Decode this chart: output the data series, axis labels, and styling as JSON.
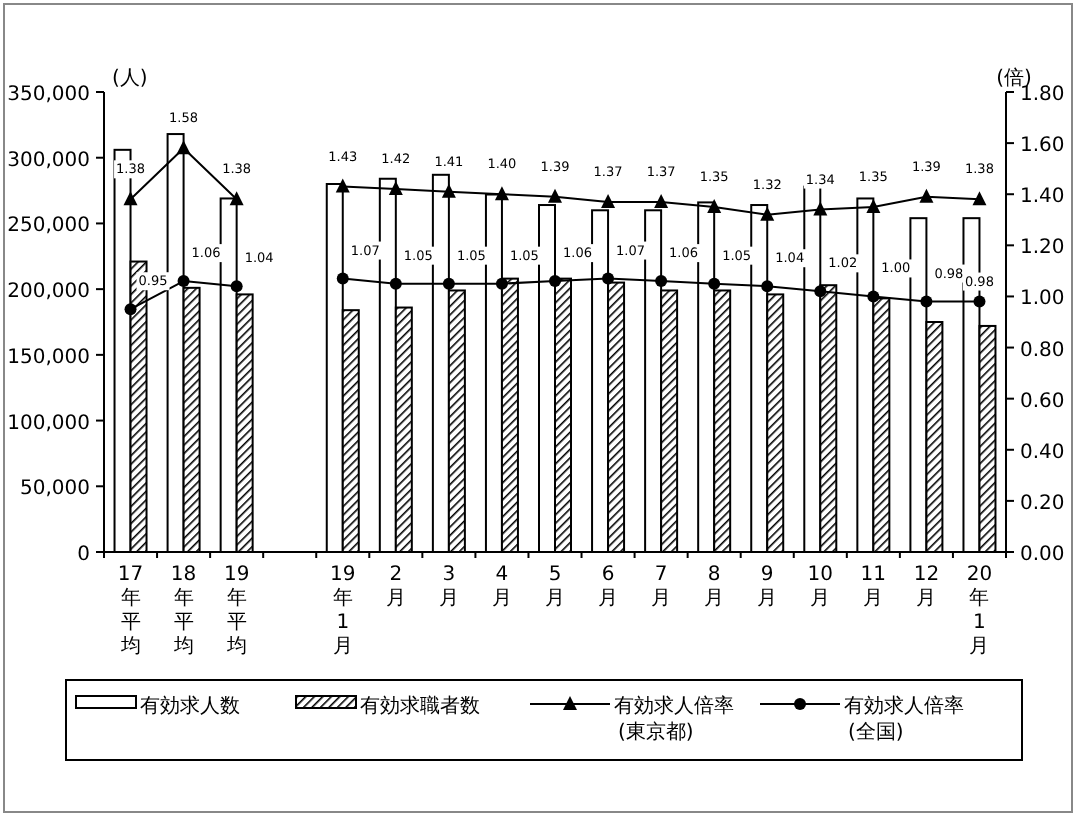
{
  "chart_data": {
    "type": "bar",
    "categories": [
      "17年平均",
      "18年平均",
      "19年平均",
      null,
      "19年1月",
      "2月",
      "3月",
      "4月",
      "5月",
      "6月",
      "7月",
      "8月",
      "9月",
      "10月",
      "11月",
      "12月",
      "20年1月"
    ],
    "ylabel": "(人)",
    "y2label": "(倍)",
    "ylim": [
      0,
      350000
    ],
    "yticks": [
      {
        "value": 0,
        "label": "0"
      },
      {
        "value": 50000,
        "label": "50,000"
      },
      {
        "value": 100000,
        "label": "100,000"
      },
      {
        "value": 150000,
        "label": "150,000"
      },
      {
        "value": 200000,
        "label": "200,000"
      },
      {
        "value": 250000,
        "label": "250,000"
      },
      {
        "value": 300000,
        "label": "300,000"
      },
      {
        "value": 350000,
        "label": "350,000"
      }
    ],
    "y2lim": [
      0,
      1.8
    ],
    "y2ticks": [
      {
        "value": 0,
        "label": "0.00"
      },
      {
        "value": 0.2,
        "label": "0.20"
      },
      {
        "value": 0.4,
        "label": "0.40"
      },
      {
        "value": 0.6,
        "label": "0.60"
      },
      {
        "value": 0.8,
        "label": "0.80"
      },
      {
        "value": 1.0,
        "label": "1.00"
      },
      {
        "value": 1.2,
        "label": "1.20"
      },
      {
        "value": 1.4,
        "label": "1.40"
      },
      {
        "value": 1.6,
        "label": "1.60"
      },
      {
        "value": 1.8,
        "label": "1.80"
      }
    ],
    "grid": false,
    "legend": "bottom",
    "series": [
      {
        "name": "有効求人数",
        "color": "#ffffff",
        "values": [
          306000,
          318000,
          269000,
          null,
          280000,
          284000,
          287000,
          272000,
          264000,
          260000,
          260000,
          266000,
          264000,
          278000,
          269000,
          254000,
          254000
        ]
      },
      {
        "name": "有効求職者数",
        "color": "#000000",
        "values": [
          221000,
          201000,
          196000,
          null,
          184000,
          186000,
          199000,
          208000,
          208000,
          205000,
          199000,
          199000,
          196000,
          203000,
          193000,
          175000,
          172000
        ]
      },
      {
        "name": "有効求人倍率\n(東京都)",
        "type": "line",
        "axis": "y2",
        "marker": "triangle",
        "color": "#000000",
        "values": [
          1.38,
          1.58,
          1.38,
          null,
          1.43,
          1.42,
          1.41,
          1.4,
          1.39,
          1.37,
          1.37,
          1.35,
          1.32,
          1.34,
          1.35,
          1.39,
          1.38
        ],
        "value_labels": [
          "1.38",
          "1.58",
          "1.38",
          null,
          "1.43",
          "1.42",
          "1.41",
          "1.40",
          "1.39",
          "1.37",
          "1.37",
          "1.35",
          "1.32",
          "1.34",
          "1.35",
          "1.39",
          "1.38"
        ]
      },
      {
        "name": "有効求人倍率\n(全国)",
        "type": "line",
        "axis": "y2",
        "marker": "circle",
        "color": "#000000",
        "values": [
          0.95,
          1.06,
          1.04,
          null,
          1.07,
          1.05,
          1.05,
          1.05,
          1.06,
          1.07,
          1.06,
          1.05,
          1.04,
          1.02,
          1.0,
          0.98,
          0.98
        ],
        "value_labels": [
          "0.95",
          "1.06",
          "1.04",
          null,
          "1.07",
          "1.05",
          "1.05",
          "1.05",
          "1.06",
          "1.07",
          "1.06",
          "1.05",
          "1.04",
          "1.02",
          "1.00",
          "0.98",
          "0.98"
        ]
      }
    ]
  }
}
